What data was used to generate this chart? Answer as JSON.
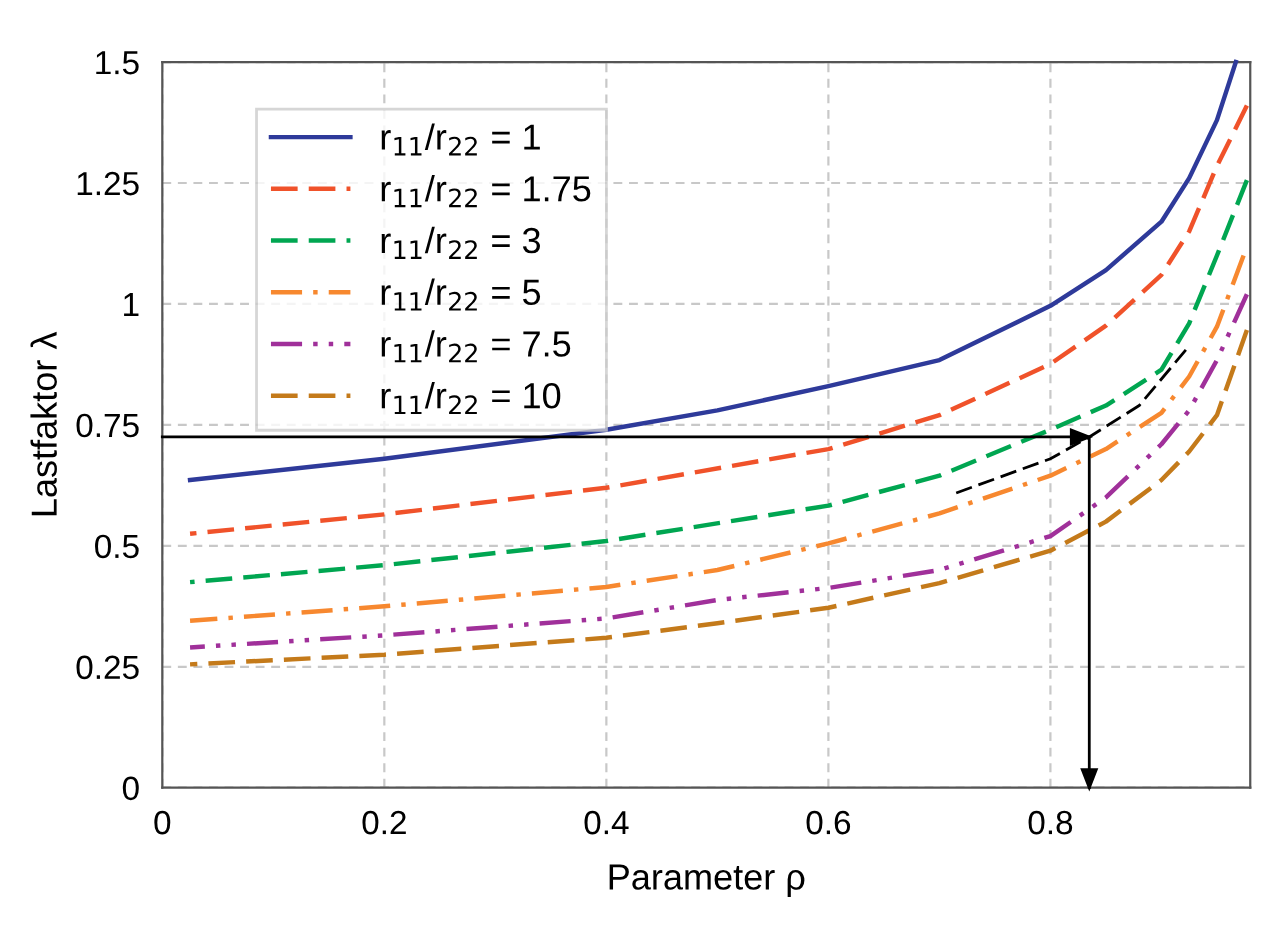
{
  "chart_data": {
    "type": "line",
    "xlabel": "Parameter ρ",
    "ylabel": "Lastfaktor λ",
    "xlim": [
      0,
      0.98
    ],
    "xticks": [
      0,
      0.2,
      0.4,
      0.6,
      0.8
    ],
    "ylim": [
      0,
      1.5
    ],
    "yticks": [
      0,
      0.25,
      0.5,
      0.75,
      1,
      1.25,
      1.5
    ],
    "grid": true,
    "legend": "top left",
    "series": [
      {
        "name": "r$_{11}$/r$_{22}$ = 1",
        "color": "#2e3a9a",
        "line_style": "solid",
        "x": [
          0.025,
          0.2,
          0.4,
          0.5,
          0.6,
          0.7,
          0.8,
          0.85,
          0.9,
          0.925,
          0.95,
          0.967
        ],
        "values": [
          0.636,
          0.68,
          0.74,
          0.78,
          0.83,
          0.884,
          0.996,
          1.07,
          1.17,
          1.26,
          1.38,
          1.5
        ]
      },
      {
        "name": "r$_{11}$/r$_{22}$ = 1.75",
        "color": "#f0522a",
        "line_style": "dashed",
        "x": [
          0.025,
          0.2,
          0.4,
          0.6,
          0.7,
          0.8,
          0.85,
          0.9,
          0.925,
          0.95,
          0.977
        ],
        "values": [
          0.525,
          0.565,
          0.62,
          0.7,
          0.77,
          0.876,
          0.955,
          1.06,
          1.15,
          1.285,
          1.41
        ]
      },
      {
        "name": "r$_{11}$/r$_{22}$ = 3",
        "color": "#00a651",
        "line_style": "dashed",
        "x": [
          0.025,
          0.2,
          0.4,
          0.6,
          0.7,
          0.8,
          0.85,
          0.9,
          0.925,
          0.95,
          0.977
        ],
        "values": [
          0.425,
          0.46,
          0.51,
          0.583,
          0.645,
          0.74,
          0.79,
          0.864,
          0.96,
          1.1,
          1.256
        ]
      },
      {
        "name": "r$_{11}$/r$_{22}$ = 5",
        "color": "#f7882f",
        "line_style": "dashdot",
        "x": [
          0.025,
          0.2,
          0.4,
          0.5,
          0.6,
          0.7,
          0.8,
          0.85,
          0.9,
          0.925,
          0.95,
          0.974
        ],
        "values": [
          0.345,
          0.375,
          0.415,
          0.45,
          0.505,
          0.567,
          0.645,
          0.7,
          0.775,
          0.85,
          0.953,
          1.1
        ]
      },
      {
        "name": "r$_{11}$/r$_{22}$ = 7.5",
        "color": "#a0309a",
        "line_style": "dashdotdot",
        "x": [
          0.025,
          0.2,
          0.4,
          0.5,
          0.6,
          0.7,
          0.8,
          0.85,
          0.9,
          0.925,
          0.95,
          0.977
        ],
        "values": [
          0.29,
          0.315,
          0.35,
          0.388,
          0.413,
          0.45,
          0.52,
          0.6,
          0.71,
          0.78,
          0.884,
          1.02
        ]
      },
      {
        "name": "r$_{11}$/r$_{22}$ = 10",
        "color": "#c47a1a",
        "line_style": "dashed",
        "x": [
          0.025,
          0.2,
          0.4,
          0.5,
          0.6,
          0.7,
          0.8,
          0.85,
          0.9,
          0.925,
          0.95,
          0.977
        ],
        "values": [
          0.255,
          0.275,
          0.31,
          0.34,
          0.372,
          0.423,
          0.49,
          0.55,
          0.636,
          0.695,
          0.77,
          0.946
        ]
      },
      {
        "color": "#000000",
        "line_style": "dashed",
        "x": [
          0.71,
          0.8,
          0.835,
          0.88,
          0.922
        ],
        "values": [
          0.605,
          0.68,
          0.725,
          0.79,
          0.905
        ]
      },
      {
        "color": "#000000",
        "line_style": "solid",
        "x": [
          0,
          0.835,
          0.835
        ],
        "values": [
          0.725,
          0.725,
          0
        ]
      }
    ]
  }
}
